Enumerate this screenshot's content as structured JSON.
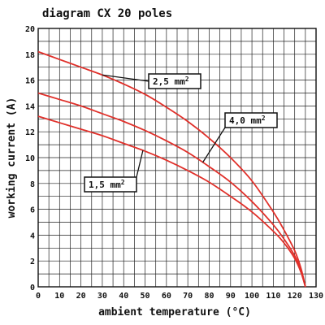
{
  "chart_data": {
    "type": "line",
    "title": "diagram CX 20 poles",
    "xlabel": "ambient temperature (°C)",
    "ylabel": "working current (A)",
    "xlim": [
      0,
      130
    ],
    "ylim": [
      0,
      20
    ],
    "x_ticks": [
      "0",
      "10",
      "20",
      "30",
      "40",
      "50",
      "60",
      "70",
      "80",
      "90",
      "100",
      "110",
      "120",
      "130"
    ],
    "y_ticks": [
      "0",
      "2",
      "4",
      "6",
      "8",
      "10",
      "12",
      "14",
      "16",
      "18",
      "20"
    ],
    "grid": true,
    "line_color": "#e0302a",
    "series": [
      {
        "name": "2,5 mm²",
        "x": [
          0,
          10,
          20,
          30,
          40,
          50,
          60,
          70,
          80,
          90,
          100,
          110,
          115,
          120,
          123,
          125
        ],
        "y": [
          18.2,
          17.6,
          17.0,
          16.4,
          15.7,
          14.9,
          13.9,
          12.8,
          11.5,
          10.0,
          8.2,
          5.8,
          4.4,
          2.8,
          1.4,
          0
        ]
      },
      {
        "name": "4,0 mm²",
        "x": [
          0,
          10,
          20,
          30,
          40,
          50,
          60,
          70,
          80,
          90,
          100,
          110,
          115,
          120,
          123,
          125
        ],
        "y": [
          15.0,
          14.5,
          14.0,
          13.4,
          12.8,
          12.1,
          11.3,
          10.4,
          9.3,
          8.1,
          6.6,
          4.8,
          3.7,
          2.4,
          1.2,
          0
        ]
      },
      {
        "name": "1,5 mm²",
        "x": [
          0,
          10,
          20,
          30,
          40,
          50,
          60,
          70,
          80,
          90,
          100,
          110,
          115,
          120,
          123,
          125
        ],
        "y": [
          13.2,
          12.7,
          12.2,
          11.7,
          11.1,
          10.5,
          9.8,
          9.0,
          8.1,
          7.0,
          5.8,
          4.3,
          3.4,
          2.2,
          1.1,
          0
        ]
      }
    ],
    "callouts": [
      {
        "label": "2,5 mm",
        "superscript": "2",
        "series": "2,5 mm²"
      },
      {
        "label": "4,0 mm",
        "superscript": "2",
        "series": "4,0 mm²"
      },
      {
        "label": "1,5 mm",
        "superscript": "2",
        "series": "1,5 mm²"
      }
    ]
  }
}
